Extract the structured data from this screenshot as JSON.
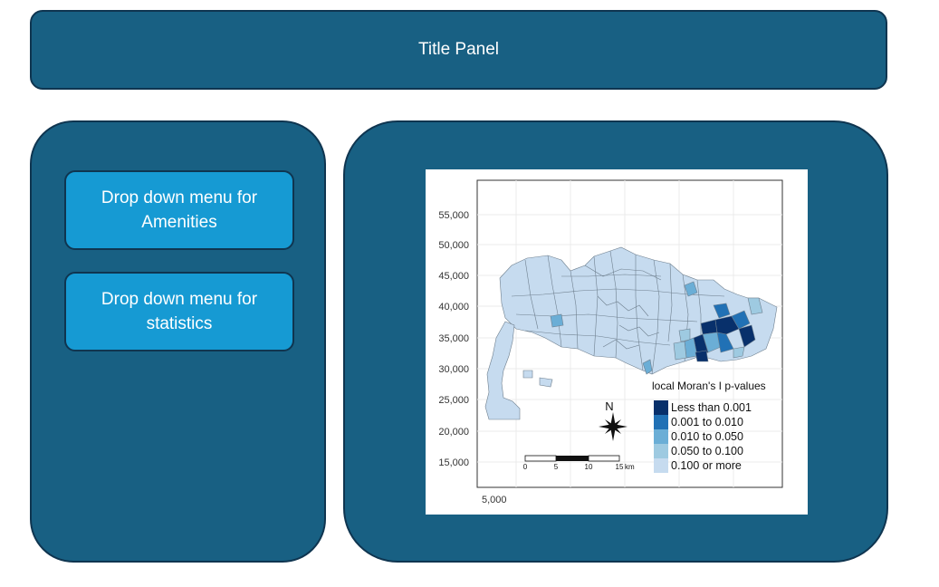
{
  "title_panel": {
    "label": "Title Panel"
  },
  "sidebar": {
    "dropdowns": [
      {
        "label": "Drop down menu for Amenities"
      },
      {
        "label": "Drop down menu for statistics"
      }
    ]
  },
  "map": {
    "y_ticks": [
      "55,000",
      "50,000",
      "45,000",
      "40,000",
      "35,000",
      "30,000",
      "25,000",
      "20,000",
      "15,000"
    ],
    "x_ticks": [
      "5,000"
    ],
    "legend": {
      "title": "local Moran's I p-values",
      "entries": [
        {
          "label": "Less than 0.001",
          "color": "#08306b"
        },
        {
          "label": "0.001 to 0.010",
          "color": "#2171b5"
        },
        {
          "label": "0.010 to 0.050",
          "color": "#6baed6"
        },
        {
          "label": "0.050 to 0.100",
          "color": "#9ecae1"
        },
        {
          "label": "0.100 or more",
          "color": "#c6dbef"
        }
      ]
    },
    "scale_bar": {
      "ticks": [
        "0",
        "5",
        "10",
        "15"
      ],
      "unit": "km"
    },
    "north_label": "N"
  }
}
